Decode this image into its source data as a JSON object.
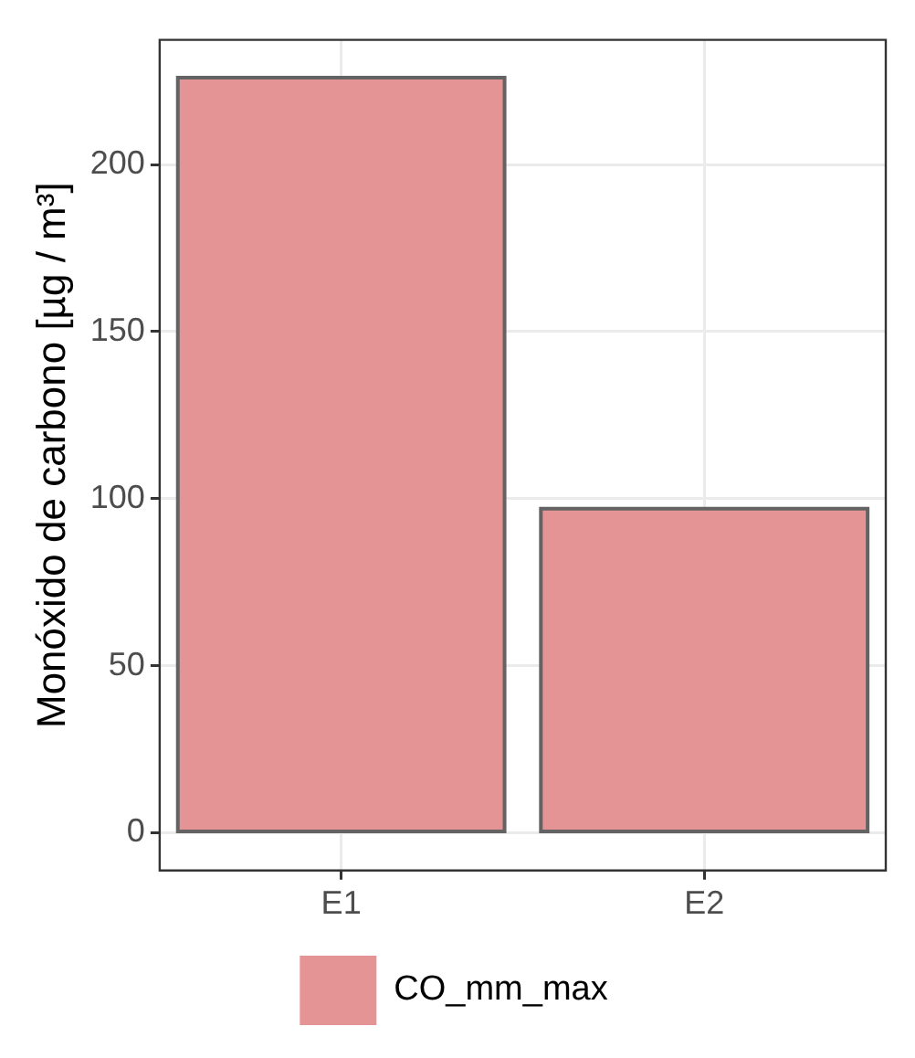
{
  "chart_data": {
    "type": "bar",
    "ylabel": "Monóxido de carbono [µg / m³]",
    "categories": [
      "E1",
      "E2"
    ],
    "series": [
      {
        "name": "CO_mm_max",
        "color": "#e49495",
        "values": [
          226,
          97
        ]
      }
    ],
    "ylim": [
      -11.3,
      237.3
    ],
    "yticks": [
      0,
      50,
      100,
      150,
      200
    ],
    "grid": true,
    "legend": "bottom"
  }
}
